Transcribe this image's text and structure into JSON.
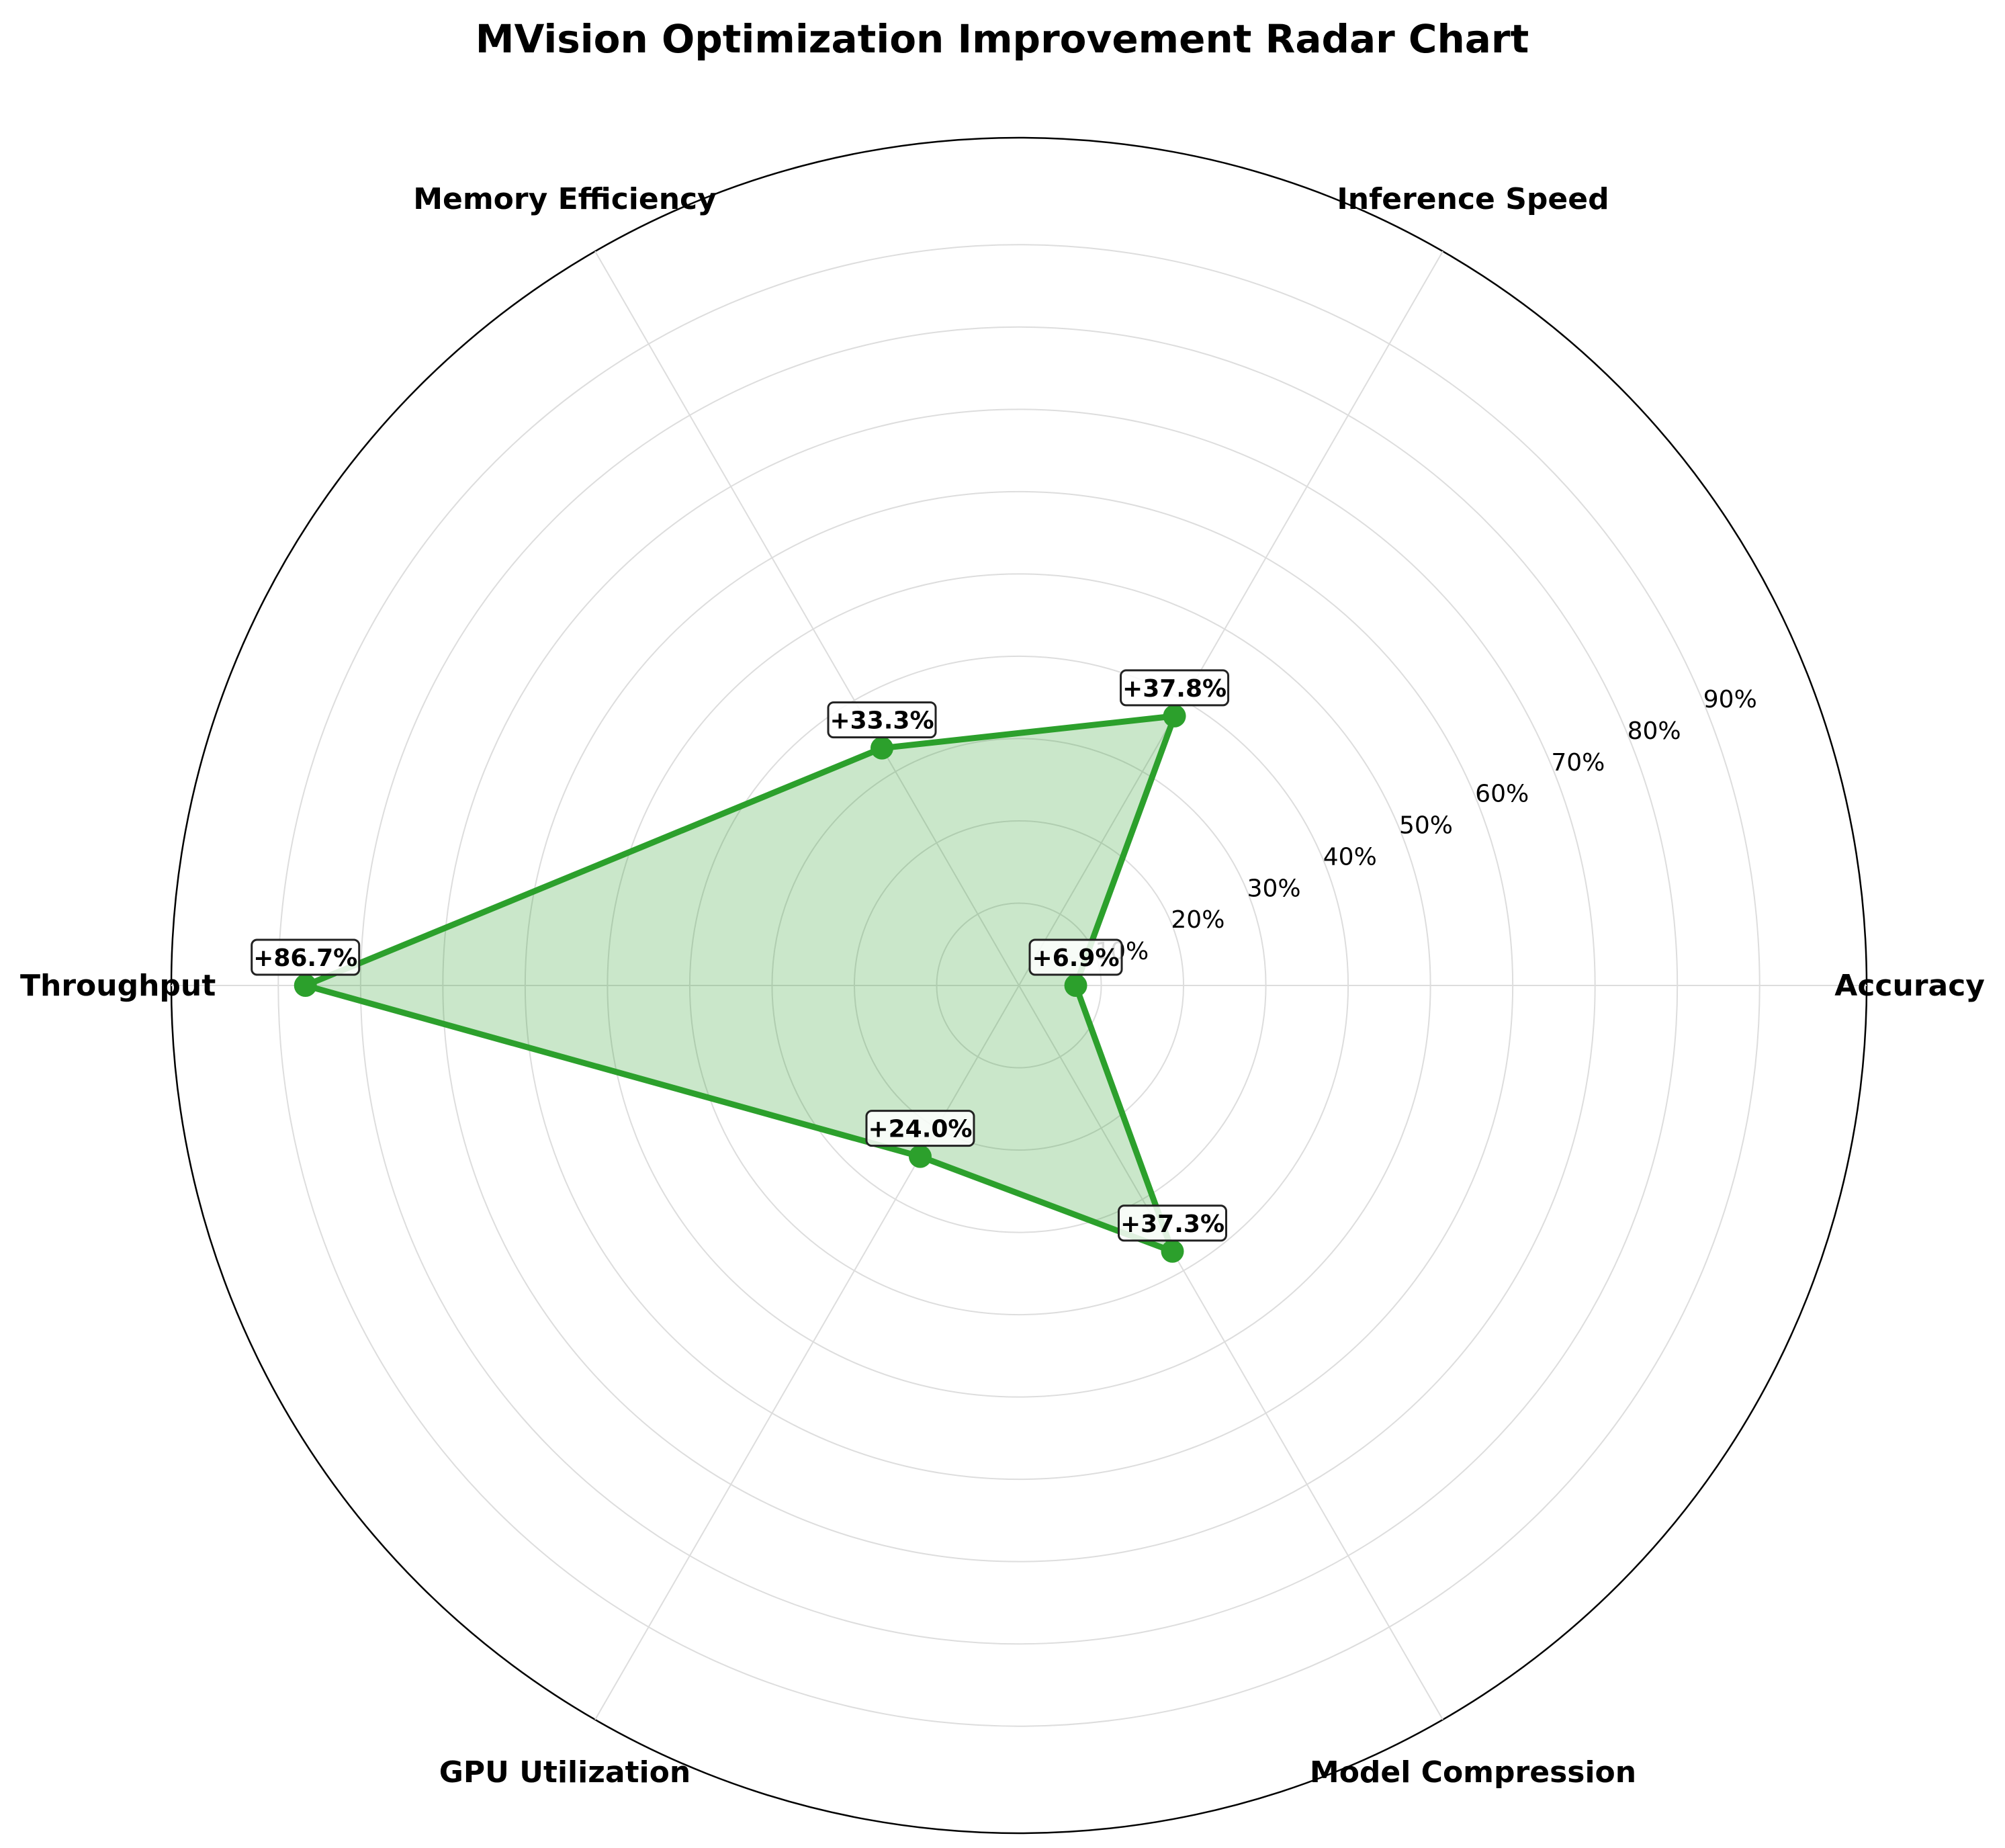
{
  "chart_data": {
    "type": "radar",
    "title": "MVision Optimization Improvement Radar Chart",
    "categories": [
      "Accuracy",
      "Inference Speed",
      "Memory Efficiency",
      "Throughput",
      "GPU Utilization",
      "Model Compression"
    ],
    "values": [
      6.9,
      37.8,
      33.3,
      86.7,
      24.0,
      37.3
    ],
    "value_labels": [
      "+6.9%",
      "+37.8%",
      "+33.3%",
      "+86.7%",
      "+24.0%",
      "+37.3%"
    ],
    "radial_ticks": [
      10,
      20,
      30,
      40,
      50,
      60,
      70,
      80,
      90
    ],
    "radial_tick_labels": [
      "10%",
      "20%",
      "30%",
      "40%",
      "50%",
      "60%",
      "70%",
      "80%",
      "90%"
    ],
    "rlim": [
      0,
      103
    ],
    "grid": true,
    "colors": {
      "series_line": "#2ca02c",
      "series_fill": "#2ca02c",
      "grid": "#dddddd",
      "outer_ring": "#000000"
    }
  }
}
